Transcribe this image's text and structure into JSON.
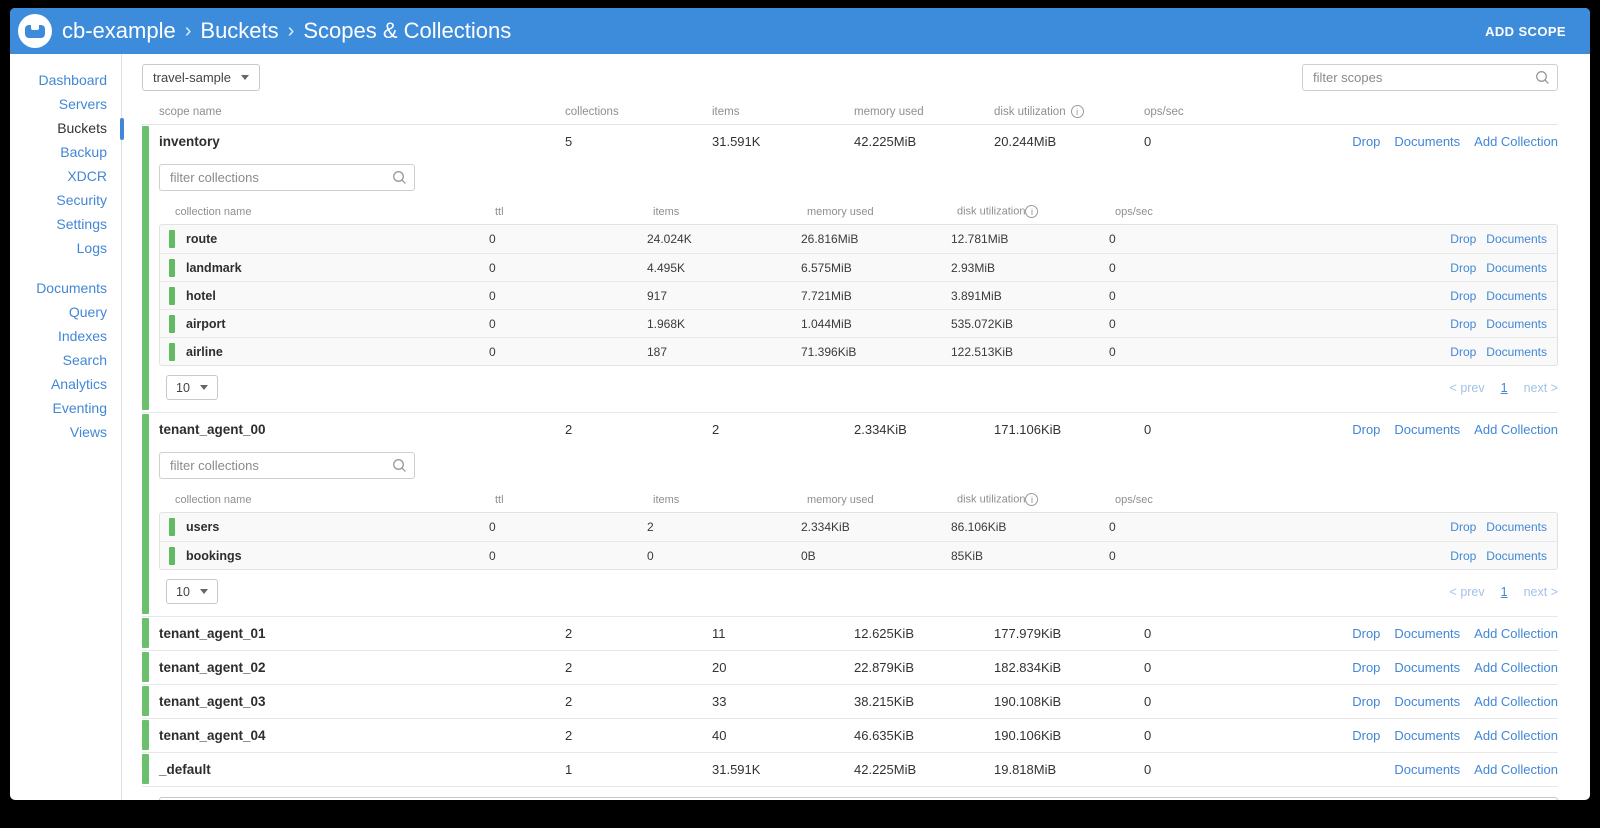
{
  "header": {
    "breadcrumb": [
      "cb-example",
      "Buckets",
      "Scopes & Collections"
    ],
    "add_scope_label": "ADD SCOPE"
  },
  "sidebar": {
    "primary": [
      "Dashboard",
      "Servers",
      "Buckets",
      "Backup",
      "XDCR",
      "Security",
      "Settings",
      "Logs"
    ],
    "secondary": [
      "Documents",
      "Query",
      "Indexes",
      "Search",
      "Analytics",
      "Eventing",
      "Views"
    ],
    "active": "Buckets"
  },
  "toolbar": {
    "bucket_selector": "travel-sample",
    "filter_scopes_placeholder": "filter scopes"
  },
  "scope_table": {
    "headers": [
      {
        "label": "scope name"
      },
      {
        "label": "collections"
      },
      {
        "label": "items"
      },
      {
        "label": "memory used"
      },
      {
        "label": "disk utilization",
        "info": true
      },
      {
        "label": "ops/sec"
      }
    ]
  },
  "collection_table": {
    "headers": [
      {
        "label": "collection name"
      },
      {
        "label": "ttl"
      },
      {
        "label": "items"
      },
      {
        "label": "memory used"
      },
      {
        "label": "disk utilization",
        "info": true
      },
      {
        "label": "ops/sec"
      }
    ],
    "filter_placeholder": "filter collections"
  },
  "actions": {
    "drop": "Drop",
    "documents": "Documents",
    "add_collection": "Add Collection"
  },
  "pagination": {
    "page_size": "10",
    "prev": "< prev",
    "page": "1",
    "next": "next >"
  },
  "colors": {
    "accent_blue": "#3d8bdb",
    "link_blue": "#4287d6",
    "scope_green": "#6cbf6c"
  },
  "scopes": [
    {
      "name": "inventory",
      "collections": "5",
      "items": "31.591K",
      "memory": "42.225MiB",
      "disk": "20.244MiB",
      "ops": "0",
      "expanded": true,
      "can_drop": true,
      "collection_rows": [
        {
          "name": "route",
          "ttl": "0",
          "items": "24.024K",
          "memory": "26.816MiB",
          "disk": "12.781MiB",
          "ops": "0"
        },
        {
          "name": "landmark",
          "ttl": "0",
          "items": "4.495K",
          "memory": "6.575MiB",
          "disk": "2.93MiB",
          "ops": "0"
        },
        {
          "name": "hotel",
          "ttl": "0",
          "items": "917",
          "memory": "7.721MiB",
          "disk": "3.891MiB",
          "ops": "0"
        },
        {
          "name": "airport",
          "ttl": "0",
          "items": "1.968K",
          "memory": "1.044MiB",
          "disk": "535.072KiB",
          "ops": "0"
        },
        {
          "name": "airline",
          "ttl": "0",
          "items": "187",
          "memory": "71.396KiB",
          "disk": "122.513KiB",
          "ops": "0"
        }
      ]
    },
    {
      "name": "tenant_agent_00",
      "collections": "2",
      "items": "2",
      "memory": "2.334KiB",
      "disk": "171.106KiB",
      "ops": "0",
      "expanded": true,
      "can_drop": true,
      "collection_rows": [
        {
          "name": "users",
          "ttl": "0",
          "items": "2",
          "memory": "2.334KiB",
          "disk": "86.106KiB",
          "ops": "0"
        },
        {
          "name": "bookings",
          "ttl": "0",
          "items": "0",
          "memory": "0B",
          "disk": "85KiB",
          "ops": "0"
        }
      ]
    },
    {
      "name": "tenant_agent_01",
      "collections": "2",
      "items": "11",
      "memory": "12.625KiB",
      "disk": "177.979KiB",
      "ops": "0",
      "expanded": false,
      "can_drop": true
    },
    {
      "name": "tenant_agent_02",
      "collections": "2",
      "items": "20",
      "memory": "22.879KiB",
      "disk": "182.834KiB",
      "ops": "0",
      "expanded": false,
      "can_drop": true
    },
    {
      "name": "tenant_agent_03",
      "collections": "2",
      "items": "33",
      "memory": "38.215KiB",
      "disk": "190.108KiB",
      "ops": "0",
      "expanded": false,
      "can_drop": true
    },
    {
      "name": "tenant_agent_04",
      "collections": "2",
      "items": "40",
      "memory": "46.635KiB",
      "disk": "190.106KiB",
      "ops": "0",
      "expanded": false,
      "can_drop": true
    },
    {
      "name": "_default",
      "collections": "1",
      "items": "31.591K",
      "memory": "42.225MiB",
      "disk": "19.818MiB",
      "ops": "0",
      "expanded": false,
      "can_drop": false
    }
  ]
}
